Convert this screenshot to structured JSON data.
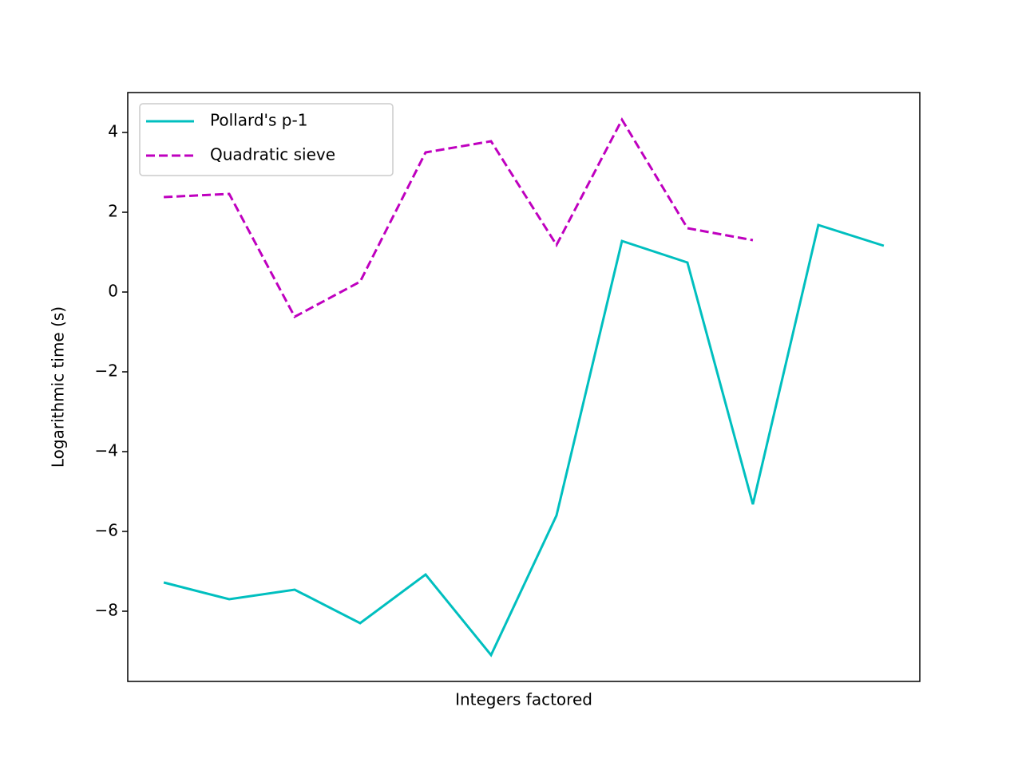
{
  "chart_data": {
    "type": "line",
    "xlabel": "Integers factored",
    "ylabel": "Logarithmic time (s)",
    "x": [
      0,
      1,
      2,
      3,
      4,
      5,
      6,
      7,
      8,
      9,
      10,
      11
    ],
    "xlim": [
      -0.55,
      11.55
    ],
    "xticks": [],
    "ylim": [
      -9.76,
      5.0
    ],
    "yticks": [
      {
        "value": -8,
        "label": "−8"
      },
      {
        "value": -6,
        "label": "−6"
      },
      {
        "value": -4,
        "label": "−4"
      },
      {
        "value": -2,
        "label": "−2"
      },
      0,
      2,
      4
    ],
    "legend": "upper left",
    "series": [
      {
        "name": "Pollard's p-1",
        "color": "#00bfbf",
        "linestyle": "solid",
        "values": [
          -7.28,
          -7.7,
          -7.46,
          -8.3,
          -7.08,
          -9.1,
          -5.6,
          1.28,
          0.74,
          -5.32,
          1.68,
          1.16
        ]
      },
      {
        "name": "Quadratic sieve",
        "color": "#bf00bf",
        "linestyle": "dashed",
        "values": [
          2.38,
          2.46,
          -0.62,
          0.26,
          3.5,
          3.78,
          1.18,
          4.32,
          1.6,
          1.3,
          null,
          null
        ]
      }
    ]
  }
}
